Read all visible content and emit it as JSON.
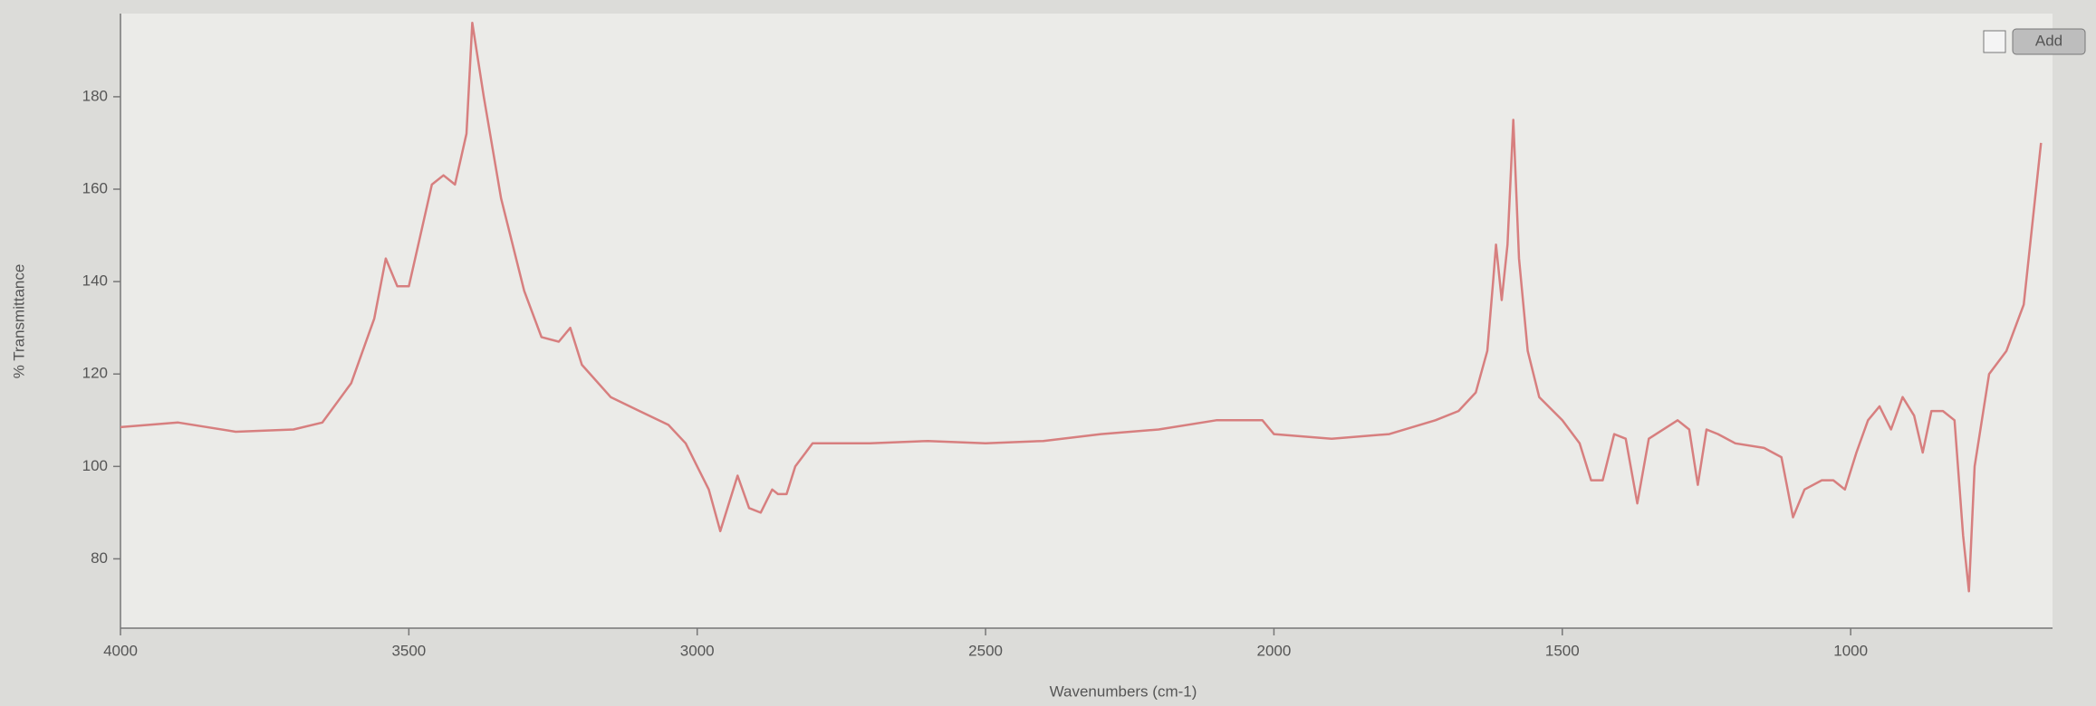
{
  "toolbar": {
    "button": "Add"
  },
  "chart_data": {
    "type": "line",
    "xlabel": "Wavenumbers (cm-1)",
    "ylabel": "% Transmittance",
    "color": "#d77f7f",
    "x": [
      4000,
      3900,
      3800,
      3700,
      3650,
      3600,
      3560,
      3540,
      3520,
      3500,
      3480,
      3460,
      3440,
      3420,
      3400,
      3390,
      3370,
      3340,
      3300,
      3270,
      3240,
      3220,
      3200,
      3150,
      3100,
      3050,
      3020,
      3000,
      2980,
      2960,
      2945,
      2930,
      2910,
      2890,
      2870,
      2860,
      2845,
      2830,
      2800,
      2700,
      2600,
      2500,
      2400,
      2300,
      2200,
      2100,
      2020,
      2000,
      1900,
      1800,
      1720,
      1680,
      1650,
      1630,
      1620,
      1615,
      1605,
      1595,
      1585,
      1575,
      1560,
      1540,
      1500,
      1470,
      1450,
      1430,
      1410,
      1390,
      1370,
      1350,
      1300,
      1280,
      1265,
      1250,
      1230,
      1200,
      1150,
      1120,
      1100,
      1080,
      1050,
      1030,
      1010,
      990,
      970,
      950,
      930,
      910,
      890,
      875,
      860,
      840,
      820,
      805,
      795,
      785,
      760,
      730,
      700,
      670
    ],
    "values": [
      108.5,
      109.5,
      107.5,
      108,
      109.5,
      118,
      132,
      145,
      139,
      139,
      150,
      161,
      163,
      161,
      172,
      196,
      180,
      158,
      138,
      128,
      127,
      130,
      122,
      115,
      112,
      109,
      105,
      100,
      95,
      86,
      92,
      98,
      91,
      90,
      95,
      94,
      94,
      100,
      105,
      105,
      105.5,
      105,
      105.5,
      107,
      108,
      110,
      110,
      107,
      106,
      107,
      110,
      112,
      116,
      125,
      140,
      148,
      136,
      148,
      175,
      145,
      125,
      115,
      110,
      105,
      97,
      97,
      107,
      106,
      92,
      106,
      110,
      108,
      96,
      108,
      107,
      105,
      104,
      102,
      89,
      95,
      97,
      97,
      95,
      103,
      110,
      113,
      108,
      115,
      111,
      103,
      112,
      112,
      110,
      85,
      73,
      100,
      120,
      125,
      135,
      170
    ],
    "xlim": [
      4000,
      650
    ],
    "ylim": [
      65,
      198
    ],
    "xticks": [
      4000,
      3500,
      3000,
      2500,
      2000,
      1500,
      1000
    ],
    "yticks": [
      80,
      100,
      120,
      140,
      160,
      180
    ]
  }
}
